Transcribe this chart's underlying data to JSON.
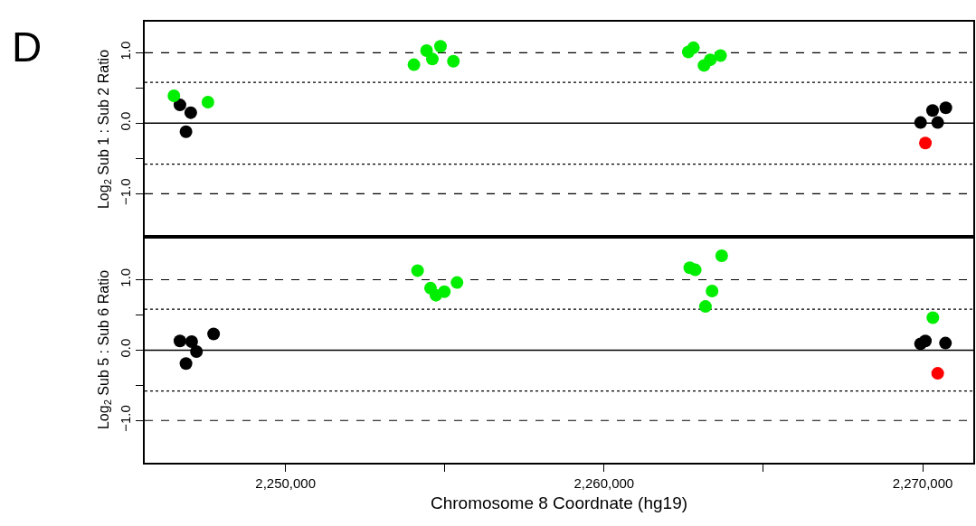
{
  "chart_data": [
    {
      "type": "scatter",
      "ylabel": "Log$_{2}$ Sub 1 : Sub 2 Ratio",
      "annotations": [
        "D"
      ],
      "marker": "circle",
      "tick_labels": "y",
      "xlim": [
        2245580,
        2271590
      ],
      "ylim": [
        -1.61,
        1.44
      ],
      "yticks": [
        {
          "value": -1,
          "label": "−1.0"
        },
        {
          "value": -0.5,
          "label": null
        },
        {
          "value": 0,
          "label": "0.0"
        },
        {
          "value": 0.5,
          "label": null
        },
        {
          "value": 1,
          "label": "1.0"
        }
      ],
      "ref_lines": [
        {
          "axis": "y",
          "value": 1,
          "line_style": "dashed",
          "color": "#000000"
        },
        {
          "axis": "y",
          "value": 0.58,
          "line_style": "dotted",
          "color": "#000000"
        },
        {
          "axis": "y",
          "value": 0,
          "line_style": "solid",
          "color": "#000000"
        },
        {
          "axis": "y",
          "value": -0.58,
          "line_style": "dotted",
          "color": "#000000"
        },
        {
          "axis": "y",
          "value": -1,
          "line_style": "dashed",
          "color": "#000000"
        }
      ],
      "series": [
        {
          "color": "#000000",
          "x": [
            2246685,
            2247025,
            2246875,
            2269935,
            2270312,
            2270473,
            2270728
          ],
          "values": [
            0.26,
            0.15,
            -0.12,
            0.01,
            0.18,
            0.01,
            0.22
          ]
        },
        {
          "color": "#00ee00",
          "x": [
            2246496,
            2247564,
            2254031,
            2254428,
            2254609,
            2254864,
            2255269,
            2262644,
            2262805,
            2263137,
            2263335,
            2263655
          ],
          "values": [
            0.39,
            0.3,
            0.83,
            1.03,
            0.91,
            1.09,
            0.88,
            1.01,
            1.07,
            0.82,
            0.9,
            0.96
          ]
        },
        {
          "color": "#ff0000",
          "x": [
            2270086
          ],
          "values": [
            -0.28
          ]
        }
      ]
    },
    {
      "type": "scatter",
      "ylabel": "Log$_{2}$ Sub 5 : Sub 6 Ratio",
      "xlabel": "Chromosome 8 Coordnate (hg19)",
      "marker": "circle",
      "xlim": [
        2245580,
        2271590
      ],
      "xticks": [
        {
          "value": 2250000,
          "label": "2,250,000"
        },
        {
          "value": 2255000,
          "label": null
        },
        {
          "value": 2260000,
          "label": "2,260,000"
        },
        {
          "value": 2265000,
          "label": null
        },
        {
          "value": 2270000,
          "label": "2,270,000"
        }
      ],
      "ylim": [
        -1.6,
        1.61
      ],
      "yticks": [
        {
          "value": -1,
          "label": "−1.0"
        },
        {
          "value": -0.5,
          "label": null
        },
        {
          "value": 0,
          "label": "0.0"
        },
        {
          "value": 0.5,
          "label": null
        },
        {
          "value": 1,
          "label": "1.0"
        }
      ],
      "ref_lines": [
        {
          "axis": "y",
          "value": 1,
          "line_style": "dashed",
          "color": "#000000"
        },
        {
          "axis": "y",
          "value": 0.58,
          "line_style": "dotted",
          "color": "#000000"
        },
        {
          "axis": "y",
          "value": 0,
          "line_style": "solid",
          "color": "#000000"
        },
        {
          "axis": "y",
          "value": -0.58,
          "line_style": "dotted",
          "color": "#000000"
        },
        {
          "axis": "y",
          "value": -1,
          "line_style": "dashed",
          "color": "#000000"
        }
      ],
      "series": [
        {
          "color": "#000000",
          "x": [
            2246685,
            2247054,
            2247204,
            2246875,
            2247742,
            2269935,
            2270086,
            2270717
          ],
          "values": [
            0.13,
            0.12,
            -0.02,
            -0.19,
            0.23,
            0.09,
            0.13,
            0.1
          ]
        },
        {
          "color": "#00ee00",
          "x": [
            2254145,
            2254552,
            2254722,
            2254986,
            2255383,
            2262691,
            2262862,
            2263692,
            2263390,
            2263182,
            2270321
          ],
          "values": [
            1.13,
            0.88,
            0.78,
            0.83,
            0.96,
            1.17,
            1.14,
            1.34,
            0.84,
            0.62,
            0.46
          ]
        },
        {
          "color": "#ff0000",
          "x": [
            2270473
          ],
          "values": [
            -0.33
          ]
        }
      ]
    }
  ]
}
